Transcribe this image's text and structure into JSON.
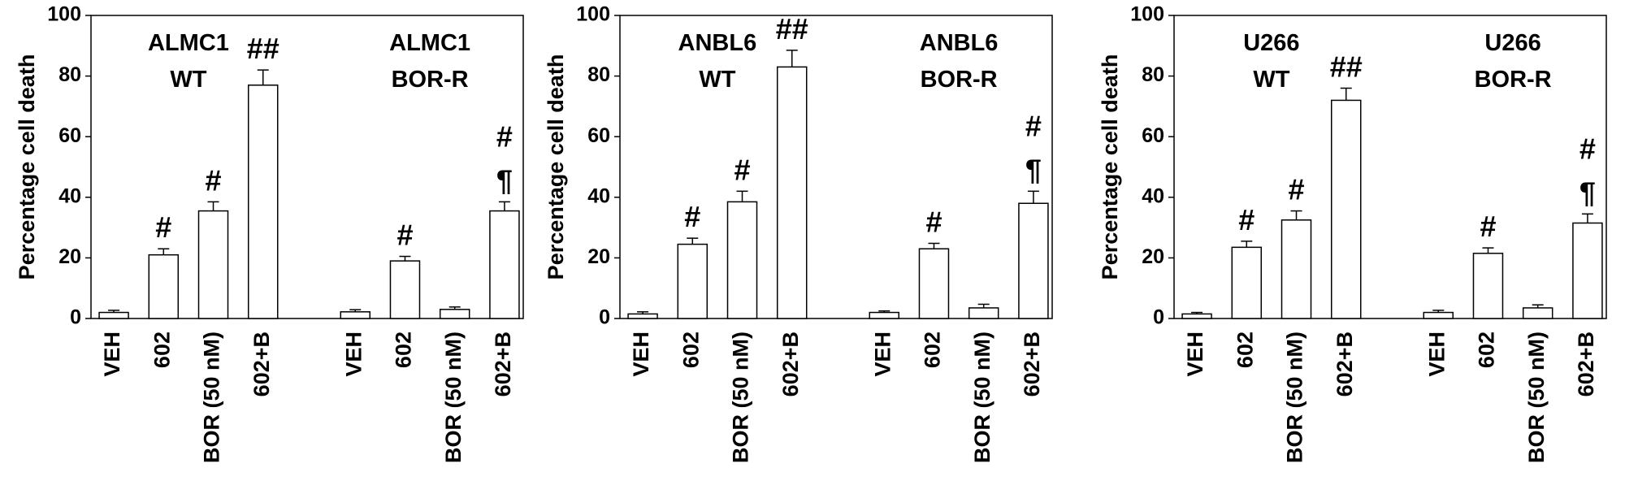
{
  "chart_data": [
    {
      "type": "bar",
      "ylabel": "Percentage cell death",
      "group_labels": [
        [
          "ALMC1",
          "WT"
        ],
        [
          "ALMC1",
          "BOR-R"
        ]
      ],
      "categories": [
        "VEH",
        "602",
        "BOR (50 nM)",
        "602+B",
        "VEH",
        "602",
        "BOR (50 nM)",
        "602+B"
      ],
      "values": [
        2,
        21,
        35.5,
        77,
        2.2,
        19,
        3,
        35.5
      ],
      "errors": [
        0.7,
        2,
        3,
        5,
        0.7,
        1.5,
        0.8,
        3
      ],
      "markers": [
        null,
        [
          "#"
        ],
        [
          "#"
        ],
        [
          "##"
        ],
        null,
        [
          "#"
        ],
        null,
        [
          "#",
          "¶"
        ]
      ],
      "color": "#ffffff",
      "ylim": [
        0,
        100
      ],
      "yticks": [
        0,
        20,
        40,
        60,
        80,
        100
      ]
    },
    {
      "type": "bar",
      "ylabel": "Percentage cell death",
      "group_labels": [
        [
          "ANBL6",
          "WT"
        ],
        [
          "ANBL6",
          "BOR-R"
        ]
      ],
      "categories": [
        "VEH",
        "602",
        "BOR (50 nM)",
        "602+B",
        "VEH",
        "602",
        "BOR (50 nM)",
        "602+B"
      ],
      "values": [
        1.5,
        24.5,
        38.5,
        83,
        2,
        23,
        3.5,
        38
      ],
      "errors": [
        0.7,
        2,
        3.5,
        5.5,
        0.5,
        1.8,
        1.2,
        4
      ],
      "markers": [
        null,
        [
          "#"
        ],
        [
          "#"
        ],
        [
          "##"
        ],
        null,
        [
          "#"
        ],
        null,
        [
          "#",
          "¶"
        ]
      ],
      "color": "#ffffff",
      "ylim": [
        0,
        100
      ],
      "yticks": [
        0,
        20,
        40,
        60,
        80,
        100
      ]
    },
    {
      "type": "bar",
      "ylabel": "Percentage cell death",
      "group_labels": [
        [
          "U266",
          "WT"
        ],
        [
          "U266",
          "BOR-R"
        ]
      ],
      "categories": [
        "VEH",
        "602",
        "BOR (50 nM)",
        "602+B",
        "VEH",
        "602",
        "BOR (50 nM)",
        "602+B"
      ],
      "values": [
        1.5,
        23.5,
        32.5,
        72,
        2,
        21.5,
        3.5,
        31.5
      ],
      "errors": [
        0.5,
        2,
        3,
        4,
        0.7,
        1.8,
        1,
        3
      ],
      "markers": [
        null,
        [
          "#"
        ],
        [
          "#"
        ],
        [
          "##"
        ],
        null,
        [
          "#"
        ],
        null,
        [
          "#",
          "¶"
        ]
      ],
      "color": "#ffffff",
      "ylim": [
        0,
        100
      ],
      "yticks": [
        0,
        20,
        40,
        60,
        80,
        100
      ]
    }
  ]
}
